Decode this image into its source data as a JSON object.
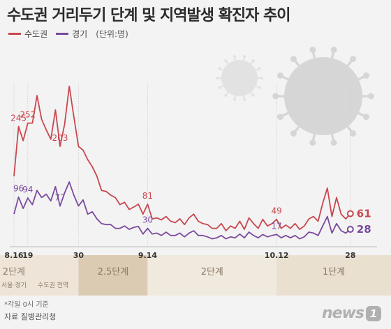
{
  "chart_data": {
    "type": "line",
    "title": "수도권 거리두기 단계 및 지역발생 확진자 추이",
    "unit": "(단위:명)",
    "x_ticks": [
      "8.16",
      "19",
      "30",
      "9.14",
      "10.12",
      "28"
    ],
    "x_tick_index": [
      0,
      3,
      14,
      29,
      57,
      73
    ],
    "series": [
      {
        "name": "수도권",
        "color": "#c8474f",
        "values": [
          140,
          245,
          215,
          252,
          252,
          310,
          260,
          238,
          218,
          280,
          203,
          250,
          330,
          265,
          203,
          195,
          175,
          160,
          140,
          110,
          108,
          100,
          95,
          80,
          85,
          70,
          75,
          81,
          60,
          81,
          50,
          52,
          48,
          55,
          45,
          42,
          50,
          38,
          52,
          60,
          45,
          40,
          38,
          30,
          30,
          40,
          25,
          35,
          30,
          45,
          28,
          52,
          40,
          30,
          49,
          35,
          40,
          49,
          30,
          37,
          30,
          40,
          28,
          35,
          50,
          55,
          45,
          83,
          115,
          55,
          95,
          60,
          50,
          61
        ],
        "labels": [
          {
            "index": 1,
            "text": "245"
          },
          {
            "index": 3,
            "text": "252"
          },
          {
            "index": 10,
            "text": "203"
          },
          {
            "index": 29,
            "text": "81"
          },
          {
            "index": 57,
            "text": "49"
          },
          {
            "index": 73,
            "text": "61"
          }
        ]
      },
      {
        "name": "경기",
        "color": "#7a4a9e",
        "values": [
          60,
          96,
          72,
          94,
          80,
          110,
          95,
          102,
          88,
          118,
          77,
          105,
          128,
          100,
          77,
          90,
          60,
          65,
          50,
          40,
          38,
          38,
          30,
          30,
          35,
          28,
          32,
          34,
          18,
          30,
          18,
          20,
          15,
          22,
          15,
          15,
          20,
          12,
          20,
          25,
          15,
          15,
          12,
          8,
          10,
          15,
          8,
          12,
          10,
          18,
          10,
          22,
          15,
          10,
          17,
          12,
          15,
          17,
          10,
          15,
          10,
          15,
          8,
          12,
          22,
          20,
          15,
          35,
          55,
          20,
          40,
          25,
          20,
          28
        ],
        "labels": [
          {
            "index": 1,
            "text": "96"
          },
          {
            "index": 3,
            "text": "94"
          },
          {
            "index": 10,
            "text": "77"
          },
          {
            "index": 29,
            "text": "30"
          },
          {
            "index": 57,
            "text": "17"
          },
          {
            "index": 73,
            "text": "28"
          }
        ]
      }
    ],
    "phases": [
      {
        "label": "2단계",
        "sub": "서울·경기",
        "start": 0,
        "end": 3
      },
      {
        "label": "",
        "sub": "수도권 전역",
        "start": 3,
        "end": 14
      },
      {
        "label": "2.5단계",
        "sub": "",
        "start": 14,
        "end": 29
      },
      {
        "label": "2단계",
        "sub": "",
        "start": 29,
        "end": 57
      },
      {
        "label": "1단계",
        "sub": "",
        "start": 57,
        "end": 76
      }
    ]
  },
  "footer": {
    "note": "*각일 0시 기준",
    "source": "자료 질병관리청"
  },
  "logo": {
    "word": "news",
    "mark": "1"
  }
}
